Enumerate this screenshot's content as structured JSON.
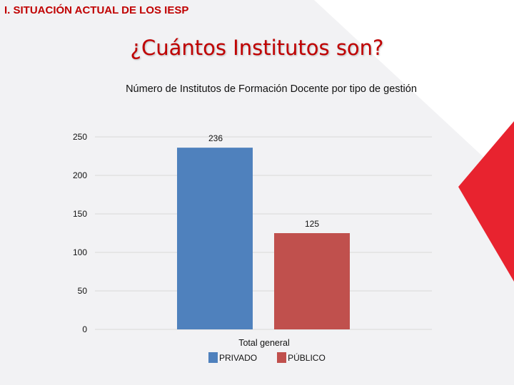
{
  "slide": {
    "section_heading": "I.  SITUACIÓN ACTUAL DE LOS IESP",
    "title": "¿Cuántos Institutos son?"
  },
  "colors": {
    "accent_red": "#c00000",
    "triangle_red": "#e8232f",
    "bar_blue": "#4f81bd",
    "bar_red": "#c0504d"
  },
  "chart_data": {
    "type": "bar",
    "title": "Número de Institutos de Formación Docente por tipo de gestión",
    "categories": [
      "Total general"
    ],
    "series": [
      {
        "name": "PRIVADO",
        "values": [
          236
        ],
        "color": "#4f81bd"
      },
      {
        "name": "PÚBLICO",
        "values": [
          125
        ],
        "color": "#c0504d"
      }
    ],
    "data_labels": [
      "236",
      "125"
    ],
    "ylim": [
      0,
      250
    ],
    "yticks": [
      0,
      50,
      100,
      150,
      200,
      250
    ],
    "grid": true,
    "legend": "bottom"
  }
}
